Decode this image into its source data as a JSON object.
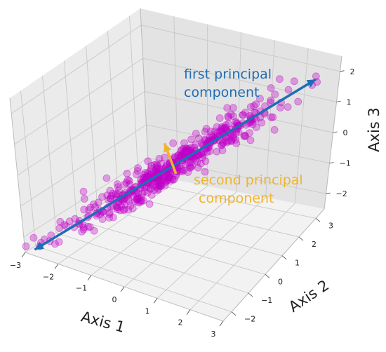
{
  "chart_data": {
    "type": "scatter",
    "title": "",
    "projection": "3d",
    "axes": {
      "x": {
        "label": "Axis 1",
        "range": [
          -3,
          3
        ],
        "ticks": [
          "−3",
          "−2",
          "−1",
          "0",
          "1",
          "2",
          "3"
        ]
      },
      "y": {
        "label": "Axis 2",
        "range": [
          -2.5,
          3.5
        ],
        "ticks": [
          "−2",
          "−1",
          "0",
          "1",
          "2",
          "3"
        ]
      },
      "z": {
        "label": "Axis 3",
        "range": [
          -2.5,
          2.5
        ],
        "ticks": [
          "−2",
          "−1",
          "0",
          "1",
          "2"
        ]
      }
    },
    "grid": true,
    "point_color": "#c000c8",
    "point_count": 500,
    "points_sample": [
      {
        "x": -2.8,
        "y": -2.1,
        "z": -2.4
      },
      {
        "x": -2.0,
        "y": -1.4,
        "z": -1.7
      },
      {
        "x": -1.0,
        "y": -0.8,
        "z": -0.9
      },
      {
        "x": 0.0,
        "y": 0.0,
        "z": 0.0
      },
      {
        "x": 1.0,
        "y": 0.8,
        "z": 0.9
      },
      {
        "x": 2.0,
        "y": 1.6,
        "z": 1.8
      },
      {
        "x": 2.9,
        "y": 2.3,
        "z": 2.5
      }
    ],
    "annotations": [
      {
        "text_lines": [
          "first principal",
          "component"
        ],
        "color": "#1f6db5"
      },
      {
        "text_lines": [
          "second principal",
          "component"
        ],
        "color": "#f0b42c"
      }
    ],
    "arrows": [
      {
        "name": "first-principal-component",
        "color": "#1f6db5",
        "from": {
          "x": -2.9,
          "y": -2.2,
          "z": -2.5
        },
        "to": {
          "x": 2.9,
          "y": 2.3,
          "z": 2.4
        },
        "double_headed": true
      },
      {
        "name": "second-principal-component",
        "color": "#f0b42c",
        "from": {
          "x": 0.1,
          "y": 0.1,
          "z": -0.2
        },
        "to": {
          "x": -0.3,
          "y": 0.2,
          "z": 0.6
        },
        "double_headed": false
      }
    ]
  }
}
